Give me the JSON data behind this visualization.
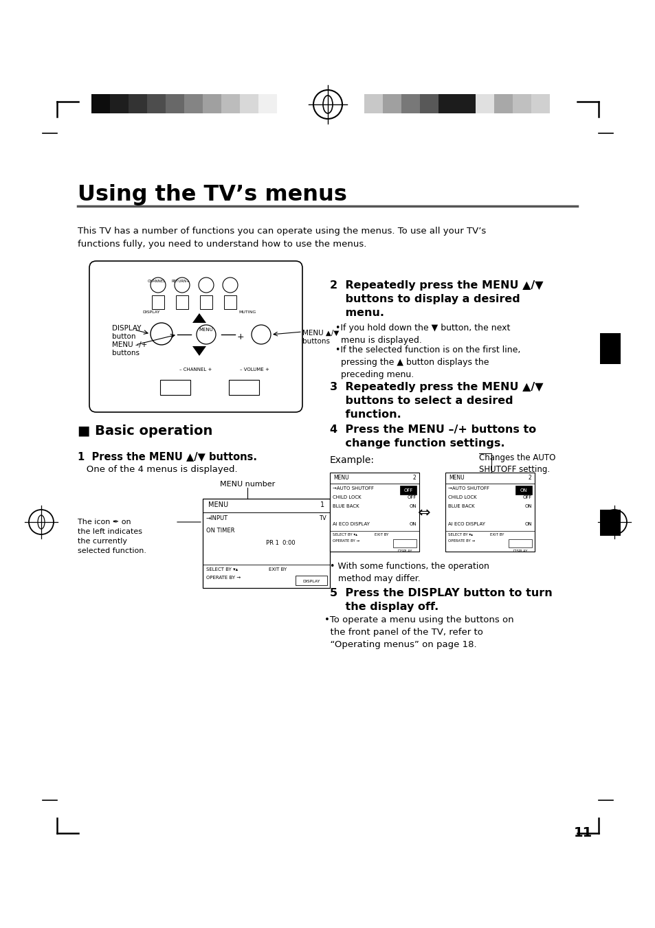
{
  "page_bg": "#ffffff",
  "title": "Using the TV’s menus",
  "intro_text": "This TV has a number of functions you can operate using the menus. To use all your TV’s\nfunctions fully, you need to understand how to use the menus.",
  "basic_op_title": "■ Basic operation",
  "step1_bold": "1  Press the MENU ▲/▼ buttons.",
  "step1_sub": "   One of the 4 menus is displayed.",
  "step2_bold": "2  Repeatedly press the MENU ▲/▼\n    buttons to display a desired\n    menu.",
  "step2_bullet1": "•If you hold down the ▼ button, the next\n  menu is displayed.",
  "step2_bullet2": "•If the selected function is on the first line,\n  pressing the ▲ button displays the\n  preceding menu.",
  "step3_bold": "3  Repeatedly press the MENU ▲/▼\n    buttons to select a desired\n    function.",
  "step4_bold": "4  Press the MENU –/+ buttons to\n    change function settings.",
  "step5_bold": "5  Press the DISPLAY button to turn\n    the display off.",
  "step5_sub": "•To operate a menu using the buttons on\n  the front panel of the TV, refer to\n  “Operating menus” on page 18.",
  "example_label": "Example:",
  "changes_text": "Changes the AUTO\nSHUTOFF setting.",
  "menu_number_label": "MENU number",
  "page_number": "11",
  "left_bar_colors": [
    "#0d0d0d",
    "#1e1e1e",
    "#333333",
    "#4d4d4d",
    "#686868",
    "#848484",
    "#a0a0a0",
    "#bcbcbc",
    "#d8d8d8",
    "#f0f0f0"
  ],
  "right_bar_colors": [
    "#c8c8c8",
    "#a0a0a0",
    "#787878",
    "#585858",
    "#1c1c1c",
    "#1c1c1c",
    "#e0e0e0",
    "#a8a8a8",
    "#c0c0c0",
    "#d0d0d0"
  ]
}
